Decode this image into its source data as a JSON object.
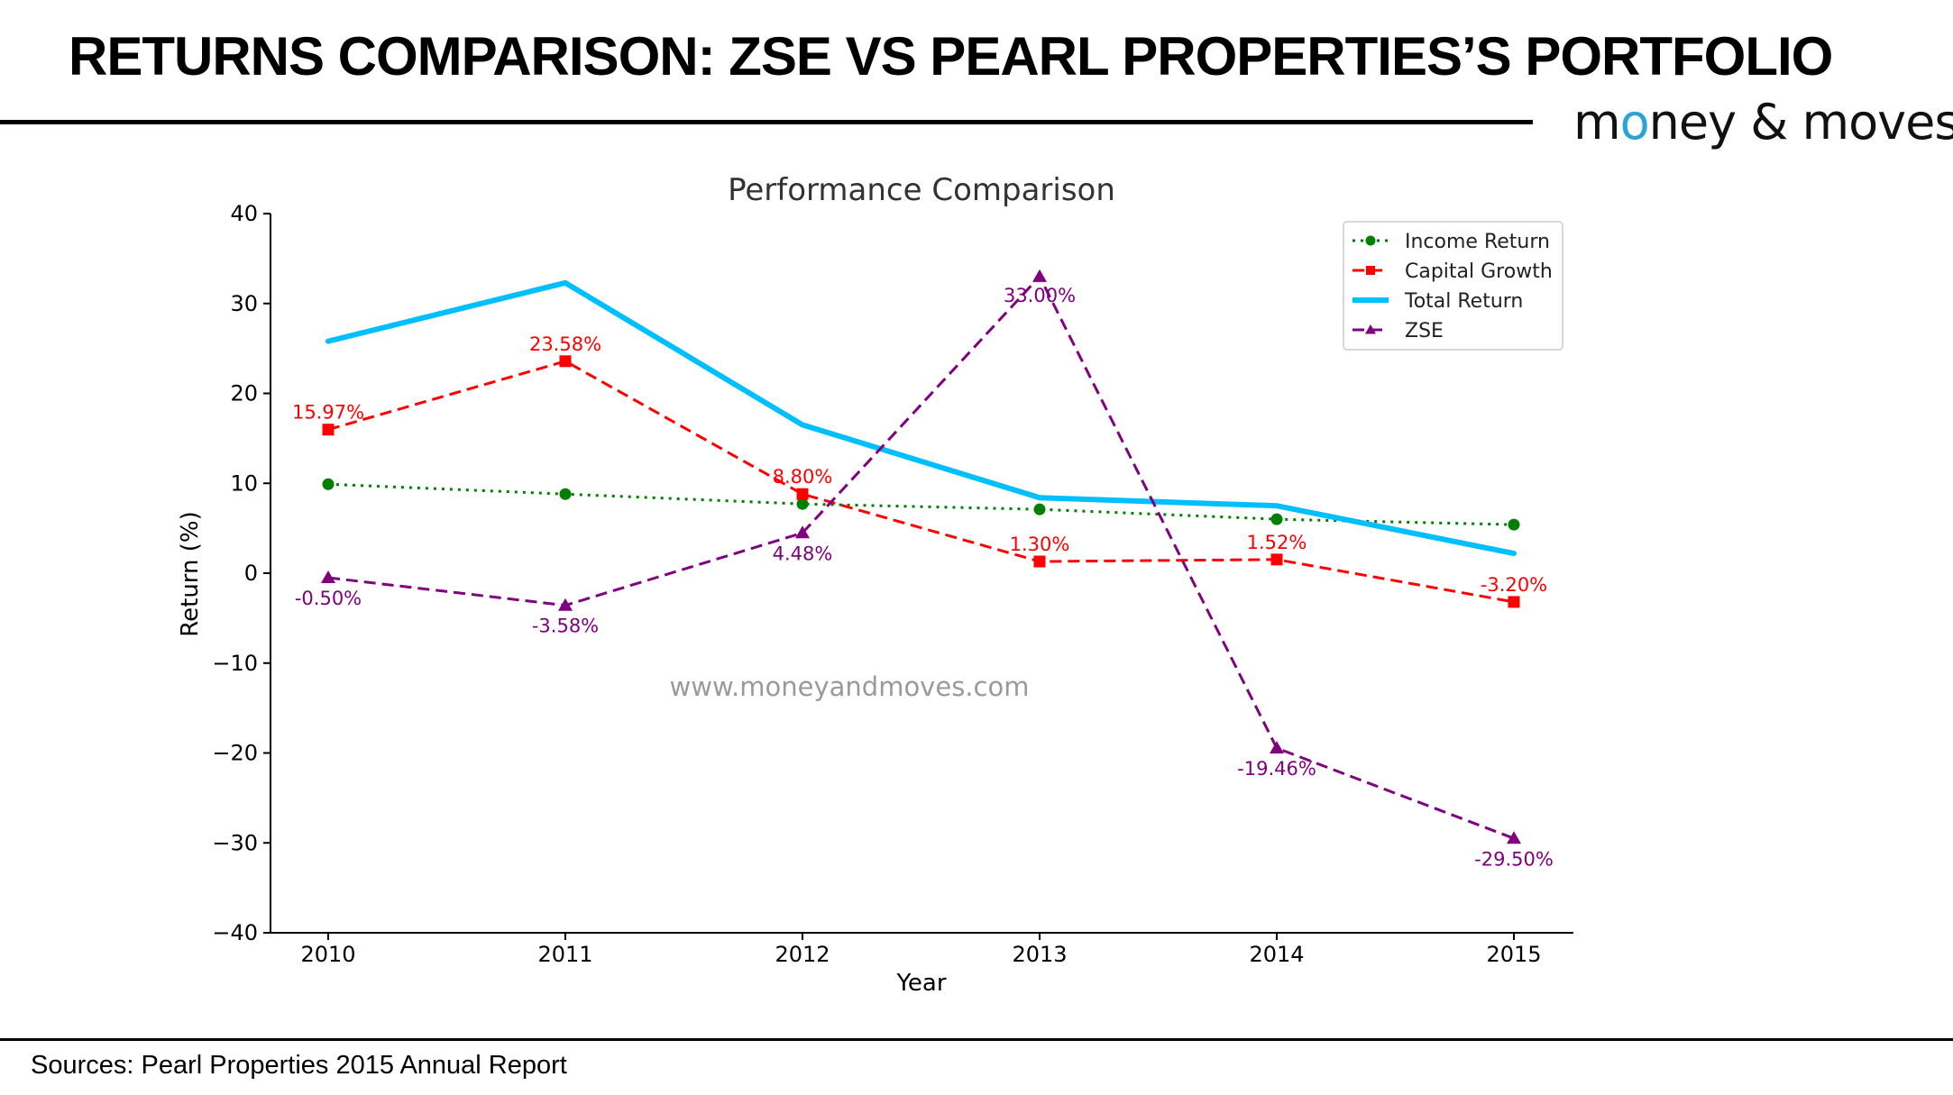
{
  "header": {
    "title": "RETURNS COMPARISON: ZSE VS PEARL PROPERTIES’S PORTFOLIO",
    "brand_prefix": "m",
    "brand_drop": "o",
    "brand_suffix": "ney & moves"
  },
  "footer": {
    "sources": "Sources: Pearl Properties 2015 Annual Report"
  },
  "watermark": "www.moneyandmoves.com",
  "chart_data": {
    "type": "line",
    "title": "Performance Comparison",
    "xlabel": "Year",
    "ylabel": "Return (%)",
    "categories": [
      "2010",
      "2011",
      "2012",
      "2013",
      "2014",
      "2015"
    ],
    "ylim": [
      -40,
      40
    ],
    "yticks": [
      40,
      30,
      20,
      10,
      0,
      -10,
      -20,
      -30,
      -40
    ],
    "ytick_labels": [
      "40",
      "30",
      "20",
      "10",
      "0",
      "−10",
      "−20",
      "−30",
      "−40"
    ],
    "grid": false,
    "legend_position": "top-right",
    "series": [
      {
        "name": "Income Return",
        "color": "#008000",
        "style": "dotted",
        "marker": "circle",
        "values": [
          9.9,
          8.8,
          7.7,
          7.1,
          6.0,
          5.4
        ],
        "labels": []
      },
      {
        "name": "Capital Growth",
        "color": "#ff0000",
        "style": "dashed",
        "marker": "square",
        "values": [
          15.97,
          23.58,
          8.8,
          1.3,
          1.52,
          -3.2
        ],
        "labels": [
          "15.97%",
          "23.58%",
          "8.80%",
          "1.30%",
          "1.52%",
          "-3.20%"
        ]
      },
      {
        "name": "Total Return",
        "color": "#00bfff",
        "style": "solid",
        "marker": "none",
        "values": [
          25.8,
          32.3,
          16.5,
          8.4,
          7.5,
          2.2
        ],
        "labels": []
      },
      {
        "name": "ZSE",
        "color": "#800080",
        "style": "dashed",
        "marker": "triangle",
        "values": [
          -0.5,
          -3.58,
          4.48,
          33.0,
          -19.46,
          -29.5
        ],
        "labels": [
          "-0.50%",
          "-3.58%",
          "4.48%",
          "33.00%",
          "-19.46%",
          "-29.50%"
        ]
      }
    ]
  }
}
